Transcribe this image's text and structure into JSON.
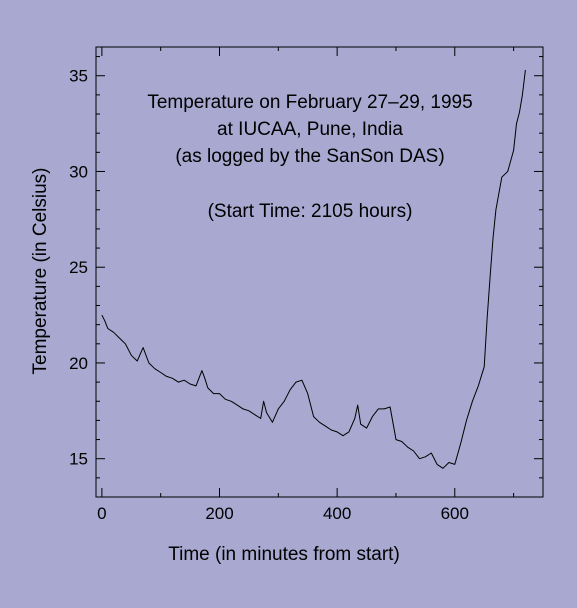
{
  "chart_data": {
    "type": "line",
    "title": "",
    "xlabel": "Time (in minutes from start)",
    "ylabel": "Temperature (in Celsius)",
    "xlim": [
      -10,
      750
    ],
    "ylim": [
      13,
      36.5
    ],
    "xticks": [
      0,
      200,
      400,
      600
    ],
    "yticks": [
      15,
      20,
      25,
      30,
      35
    ],
    "grid": false,
    "annotations": [
      "Temperature on February 27–29, 1995",
      "at IUCAA, Pune, India",
      "(as logged by the SanSon DAS)",
      "(Start Time: 2105 hours)"
    ],
    "series": [
      {
        "x": [
          0,
          5,
          10,
          20,
          30,
          40,
          50,
          60,
          70,
          80,
          90,
          100,
          110,
          120,
          130,
          140,
          150,
          160,
          170,
          175,
          180,
          190,
          200,
          210,
          220,
          230,
          240,
          250,
          260,
          270,
          275,
          280,
          290,
          300,
          310,
          320,
          330,
          340,
          350,
          360,
          370,
          380,
          390,
          400,
          410,
          420,
          430,
          435,
          440,
          450,
          460,
          470,
          480,
          490,
          500,
          510,
          520,
          530,
          540,
          550,
          560,
          570,
          580,
          590,
          600,
          610,
          620,
          630,
          640,
          650,
          655,
          660,
          665,
          670,
          680,
          690,
          700,
          705,
          710,
          715,
          720
        ],
        "y": [
          22.5,
          22.2,
          21.8,
          21.6,
          21.3,
          21.0,
          20.4,
          20.1,
          20.8,
          20.0,
          19.7,
          19.5,
          19.3,
          19.2,
          19.0,
          19.1,
          18.9,
          18.8,
          19.6,
          19.2,
          18.7,
          18.4,
          18.4,
          18.1,
          18.0,
          17.8,
          17.6,
          17.5,
          17.3,
          17.1,
          18.0,
          17.4,
          16.9,
          17.6,
          18.0,
          18.6,
          19.0,
          19.1,
          18.4,
          17.2,
          16.9,
          16.7,
          16.5,
          16.4,
          16.2,
          16.4,
          17.1,
          17.8,
          16.8,
          16.6,
          17.2,
          17.6,
          17.6,
          17.7,
          16.0,
          15.9,
          15.6,
          15.4,
          15.0,
          15.1,
          15.3,
          14.7,
          14.5,
          14.8,
          14.7,
          15.8,
          17.0,
          18.0,
          18.8,
          19.8,
          22.3,
          24.5,
          26.5,
          28.0,
          29.7,
          30.0,
          31.1,
          32.5,
          33.1,
          34.0,
          35.3
        ]
      }
    ]
  }
}
